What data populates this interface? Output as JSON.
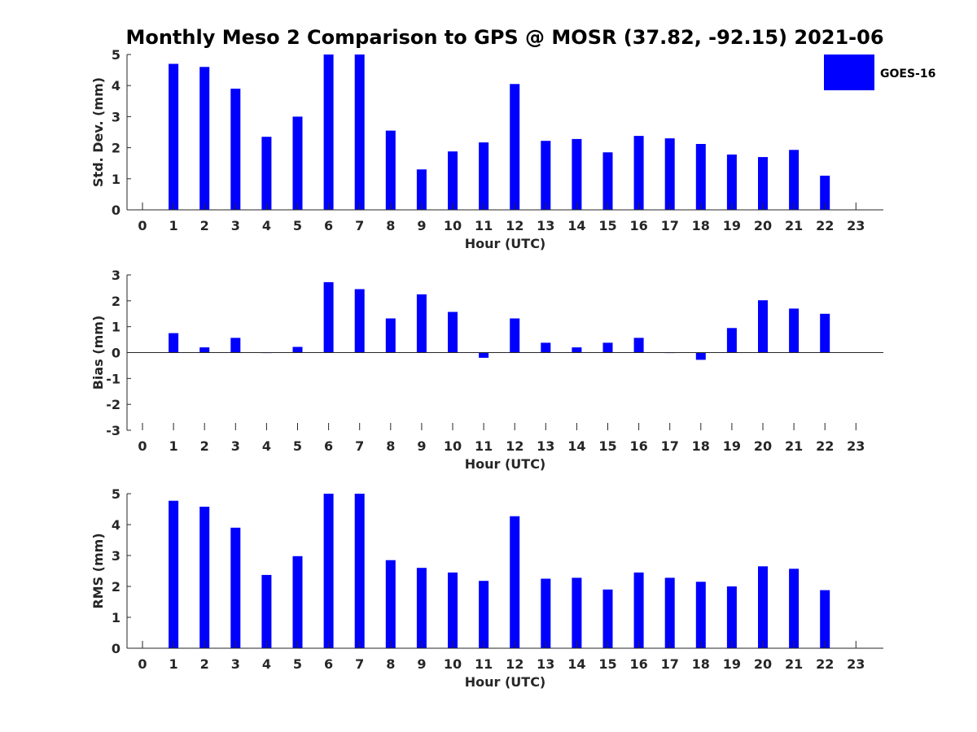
{
  "title": "Monthly Meso 2 Comparison to GPS @ MOSR (37.82, -92.15) 2021-06",
  "legend": {
    "label": "GOES-16",
    "color": "#0000ff"
  },
  "colors": {
    "bar": "#0000ff",
    "axis": "#262626",
    "background": "#ffffff"
  },
  "chart_data": [
    {
      "type": "bar",
      "name": "std-dev",
      "ylabel": "Std. Dev. (mm)",
      "xlabel": "Hour (UTC)",
      "ylim": [
        0,
        5
      ],
      "yticks": [
        0,
        1,
        2,
        3,
        4,
        5
      ],
      "categories": [
        "0",
        "1",
        "2",
        "3",
        "4",
        "5",
        "6",
        "7",
        "8",
        "9",
        "10",
        "11",
        "12",
        "13",
        "14",
        "15",
        "16",
        "17",
        "18",
        "19",
        "20",
        "21",
        "22",
        "23"
      ],
      "series": [
        {
          "name": "GOES-16",
          "values": [
            null,
            4.7,
            4.6,
            3.9,
            2.35,
            3.0,
            5.0,
            5.0,
            2.55,
            1.3,
            1.88,
            2.17,
            4.05,
            2.22,
            2.28,
            1.85,
            2.38,
            2.3,
            2.12,
            1.78,
            1.7,
            1.93,
            1.1,
            null
          ]
        }
      ]
    },
    {
      "type": "bar",
      "name": "bias",
      "ylabel": "Bias (mm)",
      "xlabel": "Hour (UTC)",
      "ylim": [
        -3,
        3
      ],
      "yticks": [
        -3,
        -2,
        -1,
        0,
        1,
        2,
        3
      ],
      "categories": [
        "0",
        "1",
        "2",
        "3",
        "4",
        "5",
        "6",
        "7",
        "8",
        "9",
        "10",
        "11",
        "12",
        "13",
        "14",
        "15",
        "16",
        "17",
        "18",
        "19",
        "20",
        "21",
        "22",
        "23"
      ],
      "series": [
        {
          "name": "GOES-16",
          "values": [
            null,
            0.75,
            0.2,
            0.57,
            0.0,
            0.22,
            2.72,
            2.45,
            1.32,
            2.25,
            1.57,
            -0.2,
            1.32,
            0.38,
            0.2,
            0.38,
            0.57,
            0.0,
            -0.28,
            0.95,
            2.02,
            1.7,
            1.5,
            null
          ]
        }
      ]
    },
    {
      "type": "bar",
      "name": "rms",
      "ylabel": "RMS (mm)",
      "xlabel": "Hour (UTC)",
      "ylim": [
        0,
        5
      ],
      "yticks": [
        0,
        1,
        2,
        3,
        4,
        5
      ],
      "categories": [
        "0",
        "1",
        "2",
        "3",
        "4",
        "5",
        "6",
        "7",
        "8",
        "9",
        "10",
        "11",
        "12",
        "13",
        "14",
        "15",
        "16",
        "17",
        "18",
        "19",
        "20",
        "21",
        "22",
        "23"
      ],
      "series": [
        {
          "name": "GOES-16",
          "values": [
            null,
            4.77,
            4.58,
            3.9,
            2.37,
            2.98,
            5.0,
            5.0,
            2.85,
            2.6,
            2.45,
            2.18,
            4.27,
            2.25,
            2.28,
            1.9,
            2.45,
            2.28,
            2.15,
            2.0,
            2.65,
            2.57,
            1.88,
            null
          ]
        }
      ]
    }
  ]
}
